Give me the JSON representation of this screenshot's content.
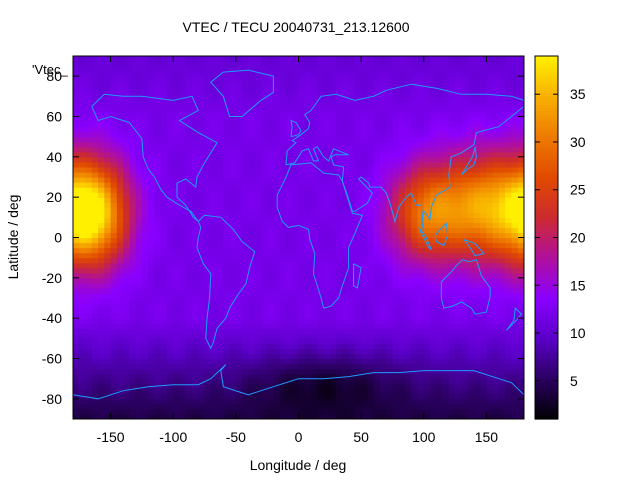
{
  "chart_data": {
    "type": "heatmap",
    "title": "VTEC / TECU 20040731_213.12600",
    "xlabel": "Longitude / deg",
    "ylabel": "Latitude / deg",
    "key_label": "'Vtec_",
    "xlim": [
      -180,
      180
    ],
    "ylim": [
      -90,
      90
    ],
    "x_ticks": [
      -150,
      -100,
      -50,
      0,
      50,
      100,
      150
    ],
    "y_ticks": [
      80,
      60,
      40,
      20,
      0,
      -20,
      -40,
      -60,
      -80
    ],
    "colorbar": {
      "range": [
        1,
        39
      ],
      "ticks": [
        5,
        10,
        15,
        20,
        25,
        30,
        35
      ]
    },
    "colormap": [
      "#000000",
      "#2a0060",
      "#5a00c8",
      "#8a00ff",
      "#b0109c",
      "#cc2a30",
      "#e04a00",
      "#ee7a00",
      "#f8b000",
      "#fff000"
    ],
    "coastline_color": "#1e9bff",
    "grid": false,
    "features": {
      "enhancement_regions": [
        {
          "lon": -165,
          "lat": 12,
          "peak_tecu": 37,
          "lon_spread": 20,
          "lat_spread": 18
        },
        {
          "lon": 150,
          "lat": 15,
          "peak_tecu": 33,
          "lon_spread": 30,
          "lat_spread": 18
        },
        {
          "lon": 100,
          "lat": 12,
          "peak_tecu": 26,
          "lon_spread": 20,
          "lat_spread": 16
        }
      ],
      "background_tecu": 12,
      "low_region": {
        "lon": 20,
        "lat": -72,
        "min_tecu": 2
      }
    }
  }
}
